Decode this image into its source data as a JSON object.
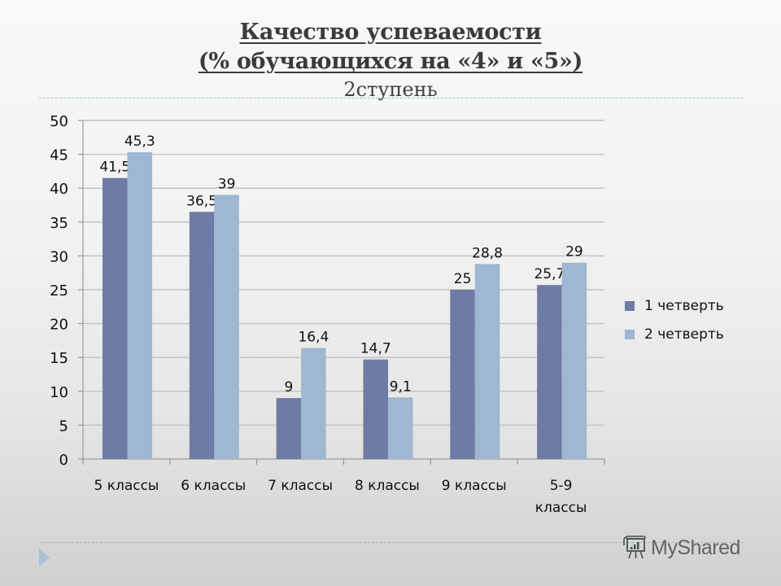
{
  "slide": {
    "title_line1": "Качество успеваемости",
    "title_line2": "(% обучающихся на «4» и «5»)",
    "subtitle": "2ступень",
    "watermark": "MyShared"
  },
  "colors": {
    "series1": "#6e7ba4",
    "series2": "#9fb7d0",
    "gridline": "#c4c4c4",
    "axis": "#8a8a8a",
    "text": "#111111"
  },
  "chart_data": {
    "type": "bar",
    "title": "Качество успеваемости (% обучающихся на «4» и «5») 2ступень",
    "xlabel": "",
    "ylabel": "",
    "categories": [
      "5 классы",
      "6 классы",
      "7 классы",
      "8 классы",
      "9 классы",
      "5-9 классы"
    ],
    "category_lines": [
      [
        "5 классы"
      ],
      [
        "6 классы"
      ],
      [
        "7 классы"
      ],
      [
        "8 классы"
      ],
      [
        "9 классы"
      ],
      [
        "5-9",
        "классы"
      ]
    ],
    "series": [
      {
        "name": "1 четверть",
        "values": [
          41.5,
          36.5,
          9,
          14.7,
          25,
          25.7
        ],
        "labels": [
          "41,5",
          "36,5",
          "9",
          "14,7",
          "25",
          "25,7"
        ]
      },
      {
        "name": "2 четверть",
        "values": [
          45.3,
          39,
          16.4,
          9.1,
          28.8,
          29
        ],
        "labels": [
          "45,3",
          "39",
          "16,4",
          "9,1",
          "28,8",
          "29"
        ]
      }
    ],
    "ylim": [
      0,
      50
    ],
    "yticks": [
      0,
      5,
      10,
      15,
      20,
      25,
      30,
      35,
      40,
      45,
      50
    ],
    "grid": true,
    "legend_position": "right",
    "data_labels": true
  }
}
